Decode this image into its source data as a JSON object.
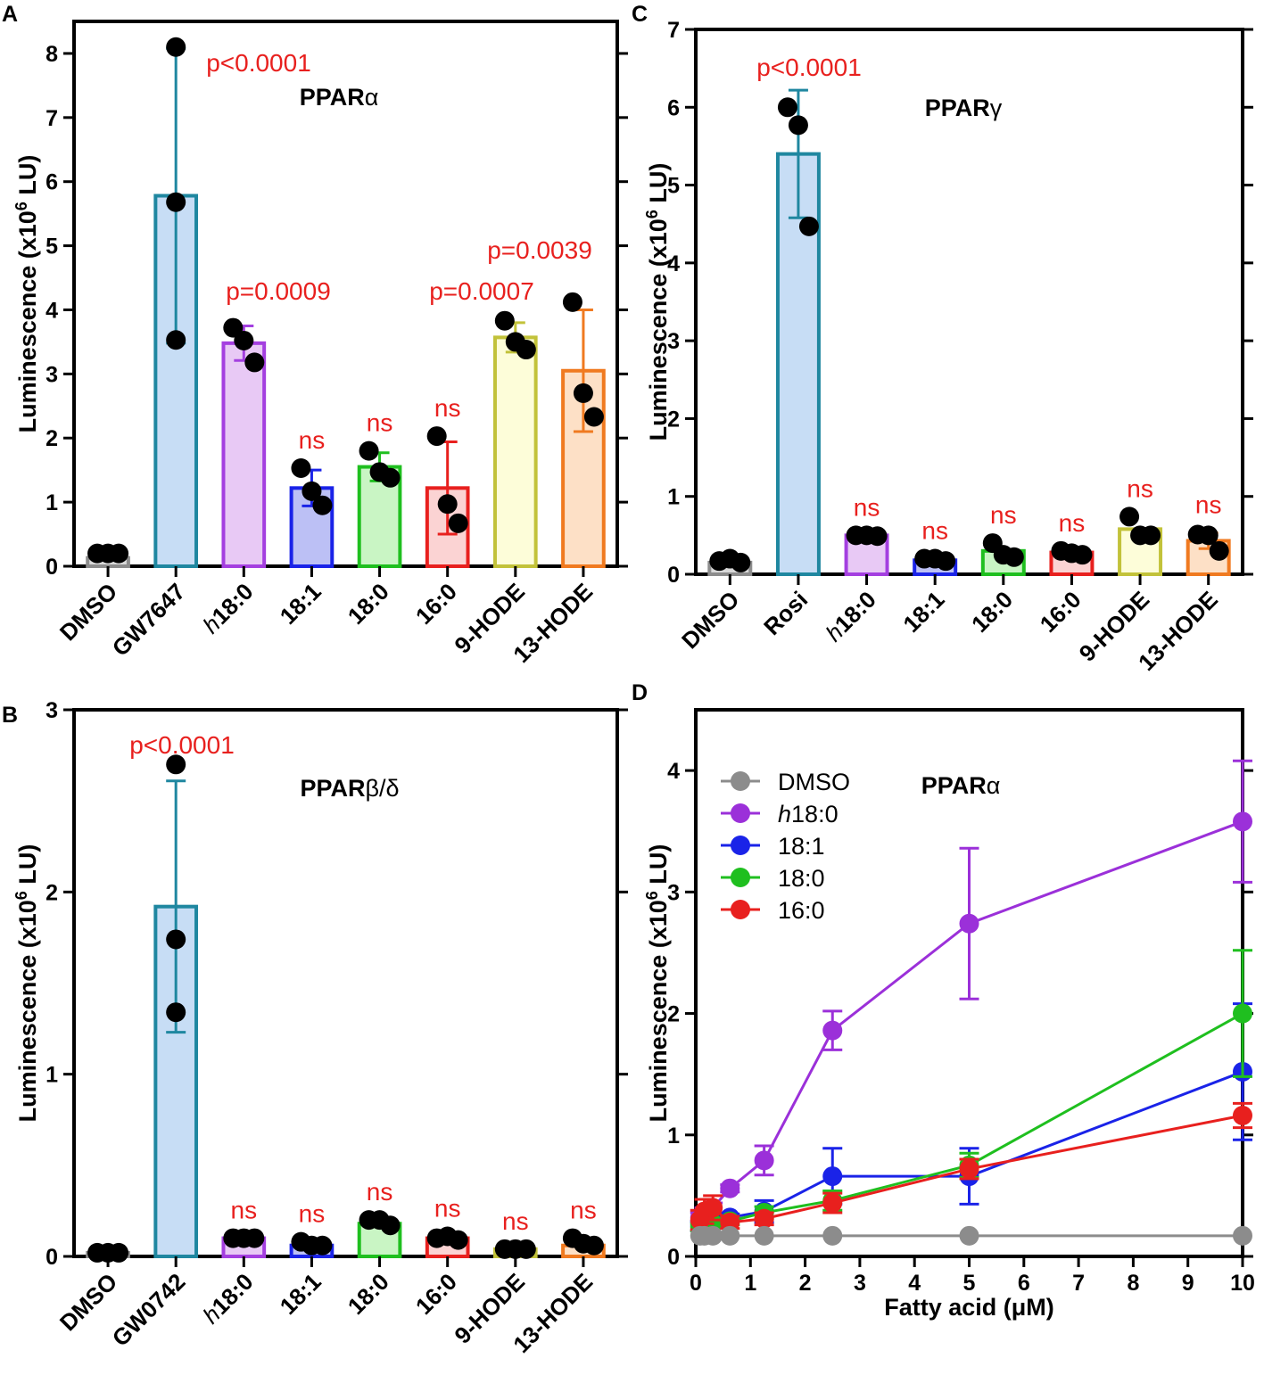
{
  "figure": {
    "panel_letters": [
      "A",
      "B",
      "C",
      "D"
    ]
  },
  "chart_data": [
    {
      "id": "A",
      "type": "bar",
      "title": "PPARα",
      "ylabel": "Luminescence (x10⁶ LU)",
      "xlabel": "",
      "ylim": [
        0,
        8.5
      ],
      "yticks": [
        "0",
        "1",
        "2",
        "3",
        "4",
        "5",
        "6",
        "7",
        "8"
      ],
      "categories": [
        "DMSO",
        "GW7647",
        "h18:0",
        "18:1",
        "18:0",
        "16:0",
        "9-HODE",
        "13-HODE"
      ],
      "values": [
        0.13,
        5.78,
        3.48,
        1.22,
        1.55,
        1.22,
        3.57,
        3.05
      ],
      "errors": [
        0.03,
        2.3,
        0.27,
        0.28,
        0.22,
        0.72,
        0.23,
        0.95
      ],
      "points": [
        [
          0.2,
          0.2,
          0.2
        ],
        [
          8.1,
          5.68,
          3.53
        ],
        [
          3.72,
          3.52,
          3.18
        ],
        [
          1.53,
          1.17,
          0.95
        ],
        [
          1.8,
          1.47,
          1.38
        ],
        [
          2.03,
          0.97,
          0.67
        ],
        [
          3.83,
          3.5,
          3.38
        ],
        [
          4.12,
          2.7,
          2.33
        ]
      ],
      "annotations": [
        "",
        "p<0.0001",
        "p=0.0009",
        "ns",
        "ns",
        "ns",
        "p=0.0007",
        "p=0.0039"
      ]
    },
    {
      "id": "B",
      "type": "bar",
      "title": "PPARβ/δ",
      "ylabel": "Luminescence (x10⁶ LU)",
      "xlabel": "",
      "ylim": [
        0,
        3
      ],
      "yticks": [
        "0",
        "1",
        "2",
        "3"
      ],
      "categories": [
        "DMSO",
        "GW0742",
        "h18:0",
        "18:1",
        "18:0",
        "16:0",
        "9-HODE",
        "13-HODE"
      ],
      "values": [
        0.02,
        1.92,
        0.1,
        0.06,
        0.18,
        0.1,
        0.04,
        0.06
      ],
      "errors": [
        0,
        0.69,
        0,
        0,
        0,
        0,
        0,
        0
      ],
      "points": [
        [
          0.02,
          0.02,
          0.02
        ],
        [
          2.7,
          1.74,
          1.34
        ],
        [
          0.1,
          0.1,
          0.1
        ],
        [
          0.08,
          0.06,
          0.06
        ],
        [
          0.2,
          0.2,
          0.17
        ],
        [
          0.1,
          0.11,
          0.09
        ],
        [
          0.04,
          0.04,
          0.04
        ],
        [
          0.1,
          0.07,
          0.06
        ]
      ],
      "annotations": [
        "",
        "p<0.0001",
        "ns",
        "ns",
        "ns",
        "ns",
        "ns",
        "ns"
      ]
    },
    {
      "id": "C",
      "type": "bar",
      "title": "PPARγ",
      "ylabel": "Luminescence (x10⁶ LU)",
      "xlabel": "",
      "ylim": [
        0,
        7
      ],
      "yticks": [
        "0",
        "1",
        "2",
        "3",
        "4",
        "5",
        "6",
        "7"
      ],
      "categories": [
        "DMSO",
        "Rosi",
        "h18:0",
        "18:1",
        "18:0",
        "16:0",
        "9-HODE",
        "13-HODE"
      ],
      "values": [
        0.15,
        5.4,
        0.5,
        0.18,
        0.3,
        0.28,
        0.58,
        0.43
      ],
      "errors": [
        0,
        0.82,
        0,
        0,
        0,
        0,
        0,
        0.1
      ],
      "points": [
        [
          0.17,
          0.2,
          0.15
        ],
        [
          6.0,
          5.77,
          4.47
        ],
        [
          0.5,
          0.5,
          0.49
        ],
        [
          0.2,
          0.2,
          0.17
        ],
        [
          0.4,
          0.25,
          0.22
        ],
        [
          0.3,
          0.27,
          0.25
        ],
        [
          0.74,
          0.5,
          0.5
        ],
        [
          0.51,
          0.5,
          0.3
        ]
      ],
      "annotations": [
        "",
        "p<0.0001",
        "ns",
        "ns",
        "ns",
        "ns",
        "ns",
        "ns"
      ]
    },
    {
      "id": "D",
      "type": "line",
      "title": "PPARα",
      "xlabel": "Fatty acid (μM)",
      "ylabel": "Luminescence (x10⁶ LU)",
      "xlim": [
        0,
        10
      ],
      "ylim": [
        0,
        4.5
      ],
      "xticks": [
        "0",
        "1",
        "2",
        "3",
        "4",
        "5",
        "6",
        "7",
        "8",
        "9",
        "10"
      ],
      "yticks": [
        "0",
        "1",
        "2",
        "3",
        "4"
      ],
      "x": [
        0.078,
        0.156,
        0.3125,
        0.625,
        1.25,
        2.5,
        5,
        10
      ],
      "series": [
        {
          "name": "DMSO",
          "color": "#8c8c8c",
          "values": [
            0.17,
            0.17,
            0.17,
            0.17,
            0.17,
            0.17,
            0.17,
            0.17
          ],
          "errors": [
            0,
            0,
            0,
            0,
            0,
            0,
            0,
            0
          ]
        },
        {
          "name": "h18:0",
          "color": "#9b30d9",
          "values": [
            0.32,
            0.36,
            0.4,
            0.56,
            0.79,
            1.86,
            2.74,
            3.58
          ],
          "errors": [
            0.04,
            0.04,
            0.04,
            0.03,
            0.12,
            0.16,
            0.62,
            0.5
          ]
        },
        {
          "name": "18:1",
          "color": "#1a23e8",
          "values": [
            0.25,
            0.27,
            0.3,
            0.32,
            0.37,
            0.66,
            0.66,
            1.52
          ],
          "errors": [
            0.04,
            0.04,
            0.03,
            0.03,
            0.09,
            0.23,
            0.23,
            0.56
          ]
        },
        {
          "name": "18:0",
          "color": "#1fbf1f",
          "values": [
            0.24,
            0.26,
            0.27,
            0.29,
            0.36,
            0.46,
            0.75,
            2.0
          ],
          "errors": [
            0.03,
            0.03,
            0.03,
            0.03,
            0.05,
            0.08,
            0.1,
            0.52
          ]
        },
        {
          "name": "16:0",
          "color": "#e8201e",
          "values": [
            0.3,
            0.37,
            0.4,
            0.28,
            0.31,
            0.44,
            0.72,
            1.16
          ],
          "errors": [
            0.08,
            0.1,
            0.1,
            0.05,
            0.05,
            0.08,
            0.08,
            0.1
          ]
        }
      ]
    }
  ]
}
